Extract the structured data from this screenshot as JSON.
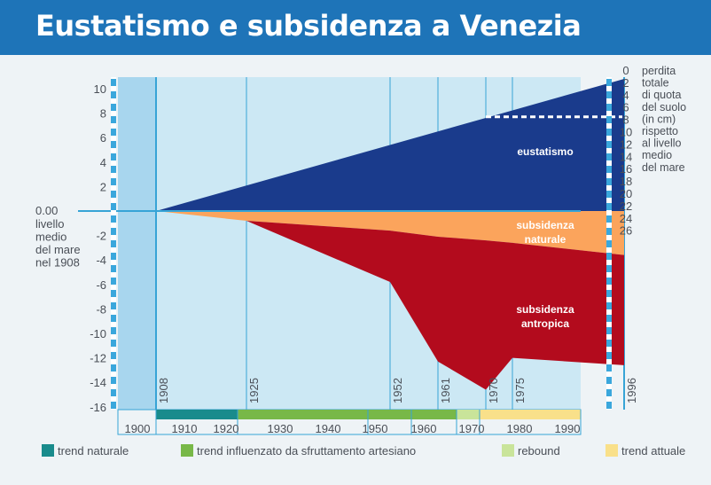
{
  "header": {
    "title": "Eustatismo e subsidenza a Venezia"
  },
  "colors": {
    "plot_bg": "#cce8f4",
    "early_bg": "#a8d6ee",
    "grid_line": "#37a4d6",
    "eustatismo": "#1a3b8c",
    "subsidenza_naturale": "#fba45c",
    "subsidenza_antropica": "#b30b1d",
    "trend_naturale": "#198b8c",
    "trend_influenzato": "#78b848",
    "rebound": "#c9e49a",
    "trend_attuale": "#f9e08a",
    "dashes": "#3aa7dc"
  },
  "chart_data": {
    "type": "area",
    "title": "Eustatismo e subsidenza a Venezia",
    "x_range": [
      1898,
      1996
    ],
    "ylim": [
      -16,
      11
    ],
    "left_axis": {
      "ticks": [
        10,
        8,
        6,
        4,
        2,
        -2,
        -4,
        -6,
        -8,
        -10,
        -12,
        -14,
        -16
      ],
      "tick_labels": [
        "10",
        "8",
        "6",
        "4",
        "2",
        "-2",
        "-4",
        "-6",
        "-8",
        "-10",
        "-12",
        "-14",
        "-16"
      ],
      "zero_label": "0.00",
      "zero_caption": [
        "livello",
        "medio",
        "del mare",
        "nel 1908"
      ]
    },
    "right_axis": {
      "ticks": [
        0,
        2,
        4,
        6,
        8,
        10,
        12,
        14,
        16,
        18,
        20,
        22,
        24,
        26
      ],
      "tick_labels": [
        "0",
        "2",
        "4",
        "6",
        "8",
        "10",
        "12",
        "14",
        "16",
        "18",
        "20",
        "22",
        "24",
        "26"
      ],
      "caption": [
        "perdita",
        "totale",
        "di quota",
        "del suolo",
        "(in cm)",
        "rispetto",
        "al livello",
        "medio",
        "del mare"
      ]
    },
    "x_axis": {
      "ticks": [
        1900,
        1910,
        1920,
        1930,
        1940,
        1950,
        1960,
        1970,
        1980,
        1990
      ],
      "tick_labels": [
        "1900",
        "1910",
        "1920",
        "1930",
        "1940",
        "1950",
        "1960",
        "1970",
        "1980",
        "1990"
      ]
    },
    "event_years": [
      {
        "year": 1908,
        "label": "1908"
      },
      {
        "year": 1925,
        "label": "1925"
      },
      {
        "year": 1952,
        "label": "1952"
      },
      {
        "year": 1961,
        "label": "1961"
      },
      {
        "year": 1970,
        "label": "1970"
      },
      {
        "year": 1975,
        "label": "1975"
      },
      {
        "year": 1996,
        "label": "1996"
      }
    ],
    "series": [
      {
        "name": "eustatismo",
        "label_lines": [
          "eustatismo"
        ],
        "x": [
          1908,
          1996
        ],
        "upper": [
          0,
          10.8
        ],
        "lower": [
          0,
          0
        ]
      },
      {
        "name": "subsidenza naturale",
        "label_lines": [
          "subsidenza",
          "naturale"
        ],
        "x": [
          1908,
          1925,
          1952,
          1961,
          1970,
          1975,
          1996
        ],
        "upper": [
          0,
          0,
          0,
          0,
          0,
          0,
          0
        ],
        "lower": [
          0,
          -0.8,
          -1.6,
          -2.1,
          -2.4,
          -2.6,
          -3.6
        ]
      },
      {
        "name": "subsidenza antropica",
        "label_lines": [
          "subsidenza",
          "antropica"
        ],
        "x": [
          1925,
          1952,
          1961,
          1970,
          1975,
          1996
        ],
        "upper": [
          -0.8,
          -1.6,
          -2.1,
          -2.4,
          -2.6,
          -3.6
        ],
        "lower": [
          -0.8,
          -5.8,
          -12.3,
          -14.6,
          -12.0,
          -12.6
        ]
      }
    ],
    "annotations": [
      {
        "type": "dashed_line",
        "x": [
          1970,
          1996
        ],
        "y": 7.7
      }
    ],
    "trend_bars": [
      {
        "name": "trend naturale",
        "x": [
          1905,
          1921
        ]
      },
      {
        "name": "trend influenzato da sfruttamento artesiano",
        "x": [
          1921,
          1966
        ]
      },
      {
        "name": "rebound",
        "x": [
          1966,
          1971
        ]
      },
      {
        "name": "trend attuale",
        "x": [
          1971,
          1992
        ]
      }
    ],
    "legend": [
      {
        "label": "trend naturale",
        "color_key": "trend_naturale"
      },
      {
        "label": "trend influenzato da sfruttamento artesiano",
        "color_key": "trend_influenzato"
      },
      {
        "label": "rebound",
        "color_key": "rebound"
      },
      {
        "label": "trend attuale",
        "color_key": "trend_attuale"
      }
    ]
  }
}
